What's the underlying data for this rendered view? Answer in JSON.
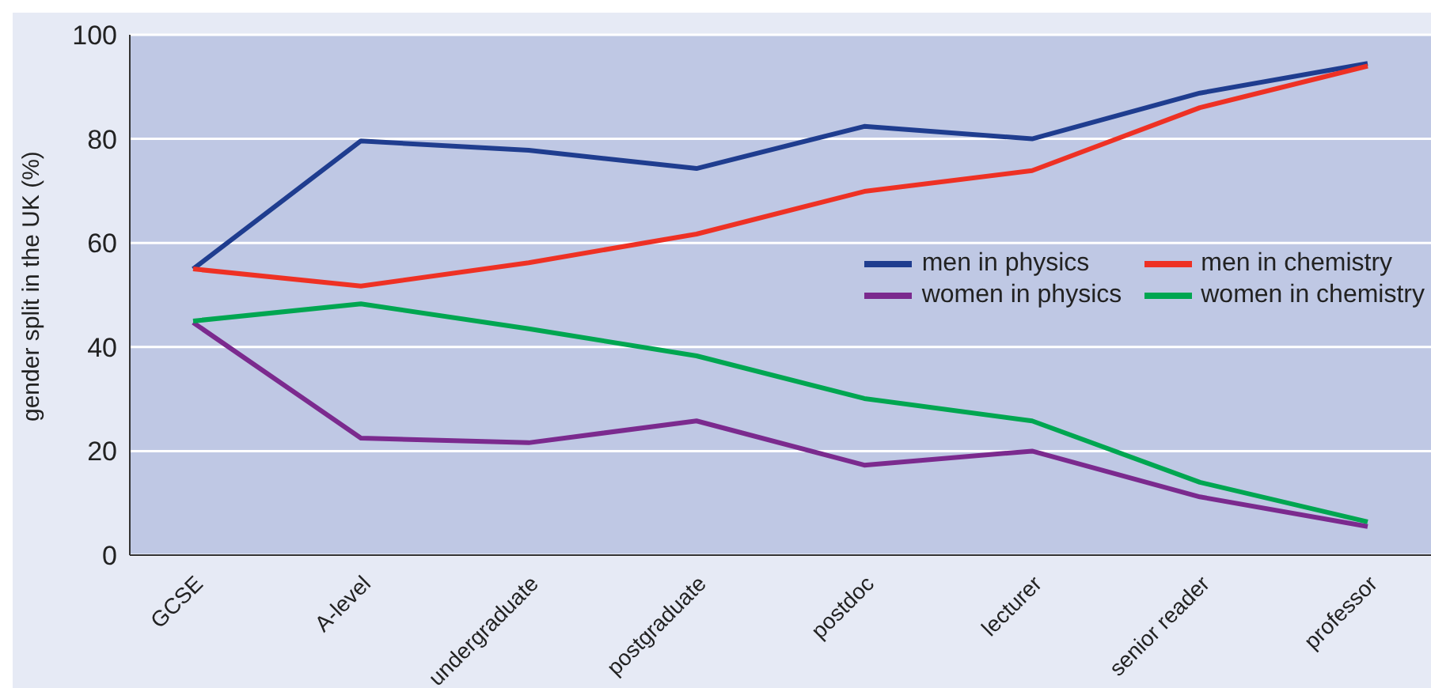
{
  "chart_data": {
    "type": "line",
    "ylabel": "gender split in the UK (%)",
    "categories": [
      "GCSE",
      "A-level",
      "undergraduate",
      "postgraduate",
      "postdoc",
      "lecturer",
      "senior reader",
      "professor"
    ],
    "series": [
      {
        "name": "men in physics",
        "color": "#1f3d8f",
        "values": [
          55,
          79.6,
          77.8,
          74.3,
          82.4,
          80,
          88.8,
          94.5
        ]
      },
      {
        "name": "men in chemistry",
        "color": "#ee3124",
        "values": [
          55,
          51.7,
          56.2,
          61.7,
          69.9,
          73.9,
          86,
          94
        ]
      },
      {
        "name": "women in physics",
        "color": "#7b2a8e",
        "values": [
          44.7,
          22.5,
          21.6,
          25.8,
          17.3,
          20,
          11.2,
          5.5
        ]
      },
      {
        "name": "women in chemistry",
        "color": "#00a651",
        "values": [
          45,
          48.3,
          43.5,
          38.3,
          30.1,
          25.8,
          14,
          6.4
        ]
      }
    ],
    "ylim": [
      0,
      100
    ],
    "yticks": [
      0,
      20,
      40,
      60,
      80,
      100
    ],
    "grid": "y",
    "legend": "right",
    "marker": "none",
    "line_style": "solid"
  }
}
